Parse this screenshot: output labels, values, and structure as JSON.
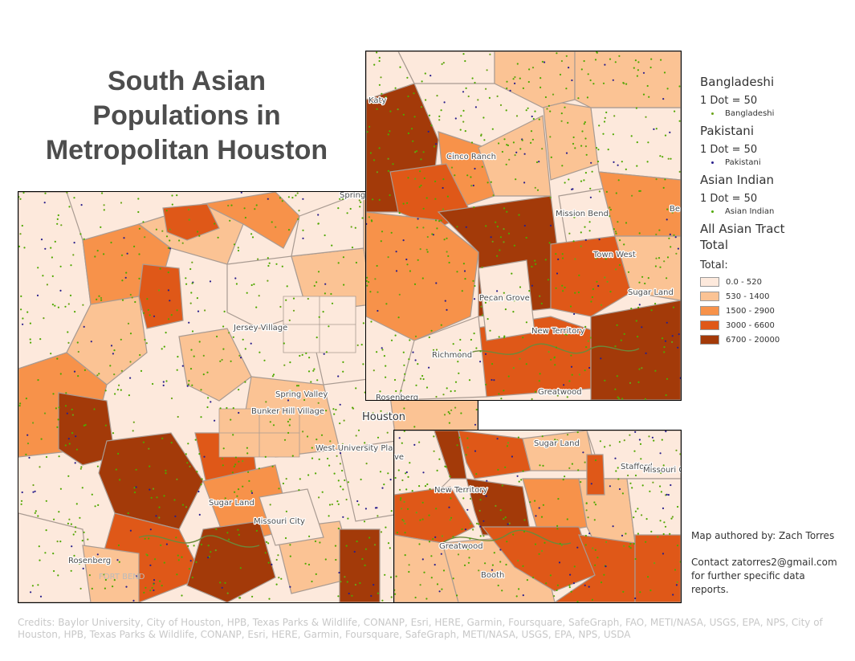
{
  "title": {
    "line1": "South Asian",
    "line2": "Populations in",
    "line3": "Metropolitan Houston"
  },
  "legend": {
    "bangladeshi_heading": "Bangladeshi",
    "bangladeshi_dot": "1 Dot = 50",
    "bangladeshi_item": "Bangladeshi",
    "pakistani_heading": "Pakistani",
    "pakistani_dot": "1 Dot = 50",
    "pakistani_item": "Pakistani",
    "indian_heading": "Asian Indian",
    "indian_dot": "1 Dot = 50",
    "indian_item": "Asian Indian",
    "tract_heading": "All Asian Tract Total",
    "total_label": "Total:",
    "classes": [
      {
        "label": "0.0 - 520",
        "color": "#fde9dc"
      },
      {
        "label": "530 - 1400",
        "color": "#fbc394"
      },
      {
        "label": "1500 - 2900",
        "color": "#f7924a"
      },
      {
        "label": "3000 - 6600",
        "color": "#df5818"
      },
      {
        "label": "6700 - 20000",
        "color": "#a33a09"
      }
    ]
  },
  "colors": {
    "bangladeshi": "#6aa318",
    "pakistani": "#2a1f8c",
    "indian": "#4fa800",
    "boundary": "#a99b92"
  },
  "map_main": {
    "labels": {
      "spring": "Spring",
      "jersey": "Jersey Village",
      "spring_valley": "Spring Valley",
      "bunker_hill": "Bunker Hill Village",
      "houston": "Houston",
      "west_university": "West University Place",
      "sugar_land": "Sugar Land",
      "missouri_city": "Missouri City",
      "rosenberg": "Rosenberg",
      "fort_bend": "FORT BEND"
    }
  },
  "map_inset_nw": {
    "labels": {
      "katy": "Katy",
      "cinco_ranch": "Cinco Ranch",
      "mission_bend": "Mission Bend",
      "bellaire": "Be",
      "town_west": "Town West",
      "sugar_land": "Sugar Land",
      "pecan_grove": "Pecan Grove",
      "new_territory": "New Territory",
      "richmond": "Richmond",
      "rosenberg": "Rosenberg",
      "greatwood": "Greatwood"
    }
  },
  "map_inset_se": {
    "labels": {
      "sugar_land": "Sugar Land",
      "stafford": "Stafford",
      "missouri_city": "Missouri City",
      "new_territory": "New Territory",
      "greatwood": "Greatwood",
      "booth": "Booth",
      "pasadena_part": "ve"
    }
  },
  "author": "Map authored by: Zach Torres",
  "contact": "Contact zatorres2@gmail.com for further specific data reports.",
  "credits": "Credits: Baylor University, City of Houston, HPB, Texas Parks & Wildlife, CONANP, Esri, HERE, Garmin, Foursquare, SafeGraph, FAO, METI/NASA, USGS, EPA, NPS, City of Houston, HPB, Texas Parks & Wildlife, CONANP, Esri, HERE, Garmin, Foursquare, SafeGraph, METI/NASA, USGS, EPA, NPS, USDA"
}
